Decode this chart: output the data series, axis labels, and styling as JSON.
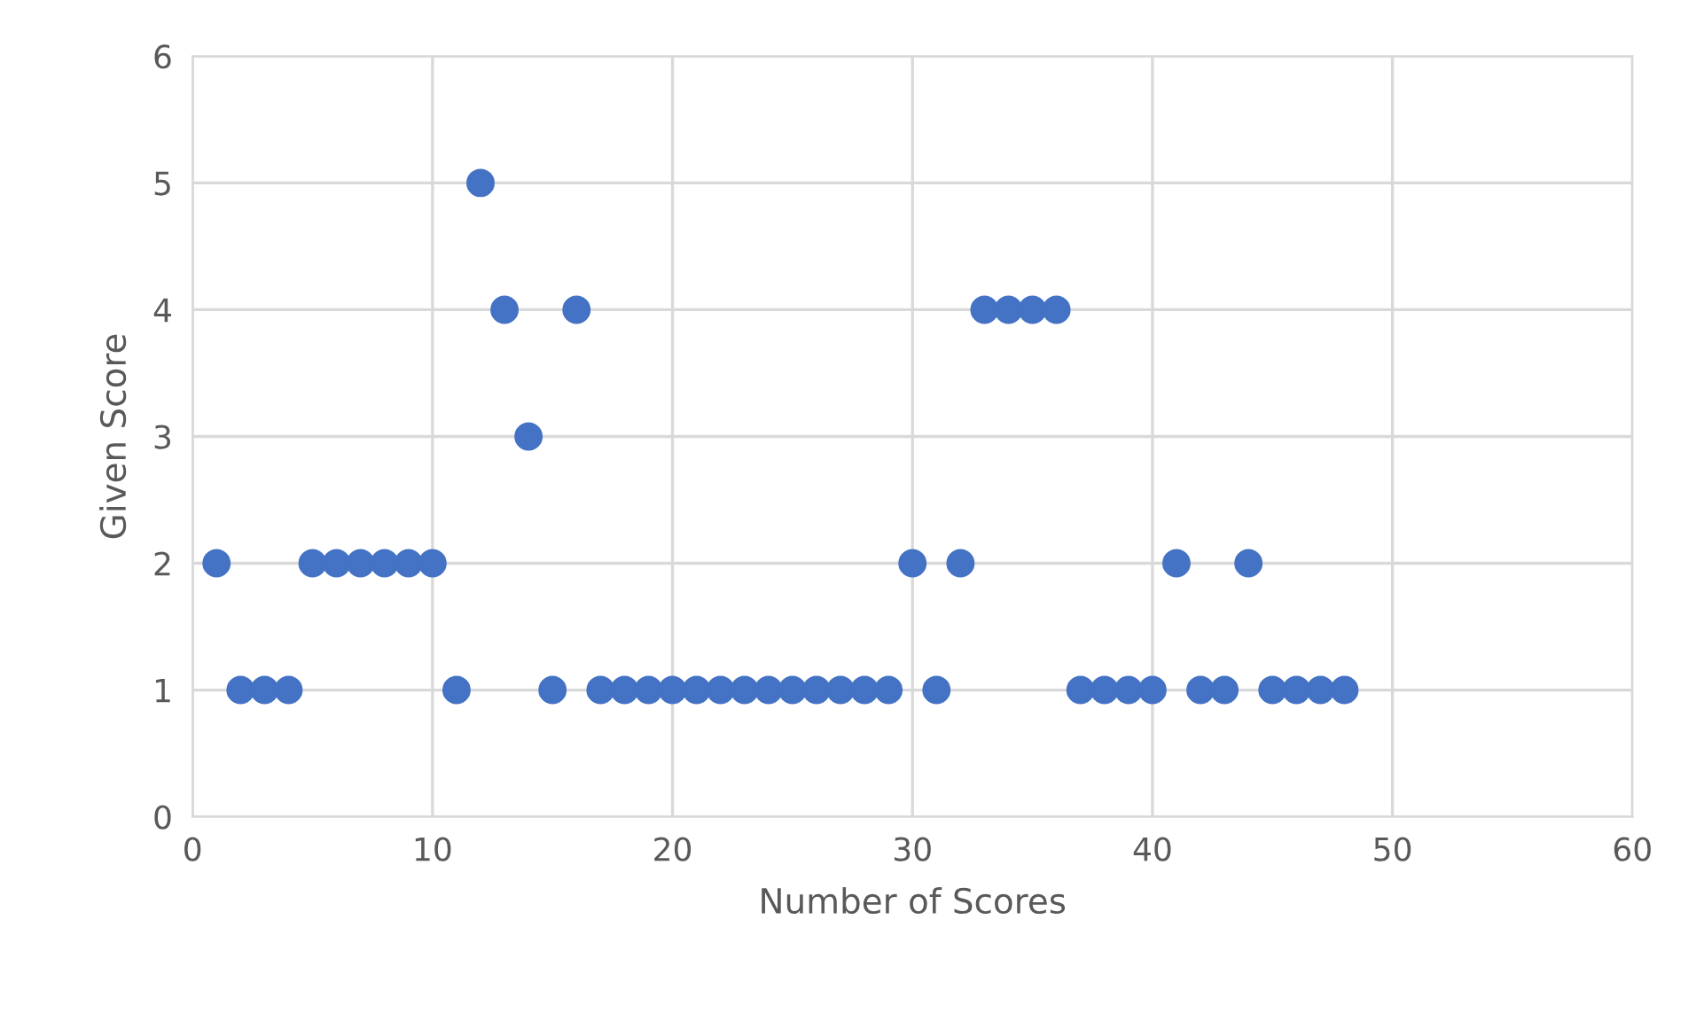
{
  "chart_data": {
    "type": "scatter",
    "xlabel": "Number of Scores",
    "ylabel": "Given Score",
    "x": [
      1,
      2,
      3,
      4,
      5,
      6,
      7,
      8,
      9,
      10,
      11,
      12,
      13,
      14,
      15,
      16,
      17,
      18,
      19,
      20,
      21,
      22,
      23,
      24,
      25,
      26,
      27,
      28,
      29,
      30,
      31,
      32,
      33,
      34,
      35,
      36,
      37,
      38,
      39,
      40,
      41,
      42,
      43,
      44,
      45,
      46,
      47,
      48
    ],
    "series": [
      {
        "color": "#4472c4",
        "values": [
          2,
          1,
          1,
          1,
          2,
          2,
          2,
          2,
          2,
          2,
          1,
          5,
          4,
          3,
          1,
          4,
          1,
          1,
          1,
          1,
          1,
          1,
          1,
          1,
          1,
          1,
          1,
          1,
          1,
          2,
          1,
          2,
          4,
          4,
          4,
          4,
          1,
          1,
          1,
          1,
          2,
          1,
          1,
          2,
          1,
          1,
          1,
          1
        ]
      }
    ],
    "xlim": [
      0,
      60
    ],
    "xticks": [
      0,
      10,
      20,
      30,
      40,
      50,
      60
    ],
    "ylim": [
      0,
      6
    ],
    "yticks": [
      0,
      1,
      2,
      3,
      4,
      5,
      6
    ],
    "grid": true,
    "marker": "circle"
  }
}
